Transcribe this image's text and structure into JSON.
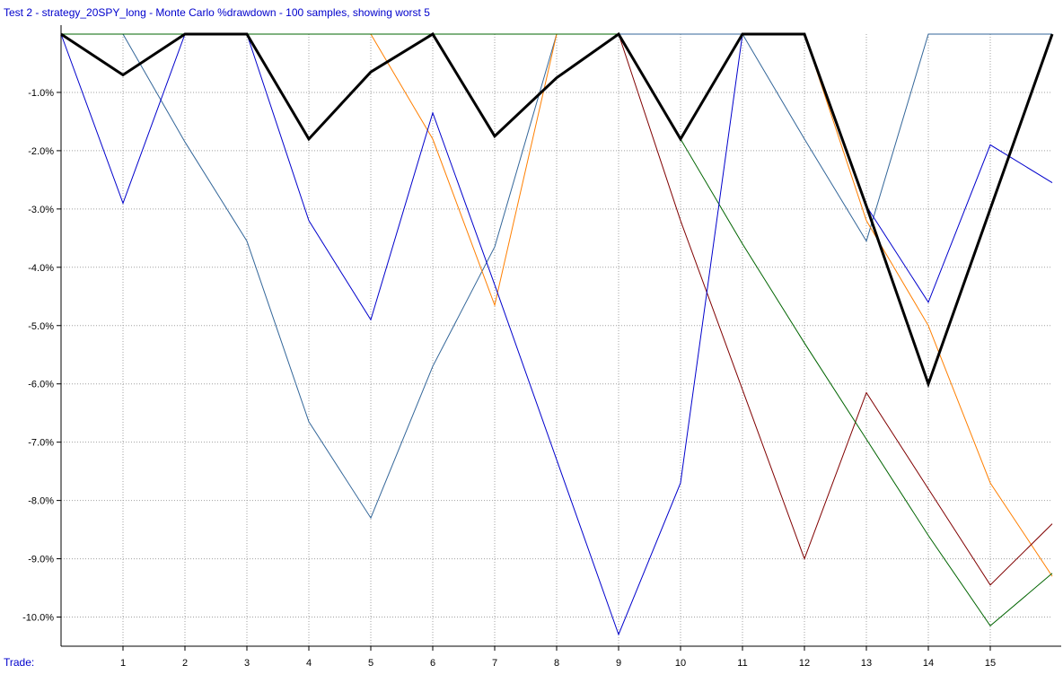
{
  "chart_data": {
    "type": "line",
    "title": "Test 2 - strategy_20SPY_long - Monte Carlo %drawdown - 100 samples, showing worst 5",
    "xlabel": "Trade:",
    "ylabel": "",
    "x": [
      0,
      1,
      2,
      3,
      4,
      5,
      6,
      7,
      8,
      9,
      10,
      11,
      12,
      13,
      14,
      15,
      16
    ],
    "x_tick_labels": [
      "1",
      "2",
      "3",
      "4",
      "5",
      "6",
      "7",
      "8",
      "9",
      "10",
      "11",
      "12",
      "13",
      "14",
      "15"
    ],
    "y_tick_values": [
      -1,
      -2,
      -3,
      -4,
      -5,
      -6,
      -7,
      -8,
      -9,
      -10
    ],
    "y_tick_labels": [
      "-1.0%",
      "-2.0%",
      "-3.0%",
      "-4.0%",
      "-5.0%",
      "-6.0%",
      "-7.0%",
      "-8.0%",
      "-9.0%",
      "-10.0%"
    ],
    "xlim": [
      0,
      16
    ],
    "ylim": [
      -10.5,
      0
    ],
    "grid": true,
    "series": [
      {
        "color": "#336699",
        "width": 1,
        "values": [
          0,
          0,
          -1.85,
          -3.55,
          -6.65,
          -8.3,
          -5.7,
          -3.65,
          0,
          0,
          0,
          0,
          -1.8,
          -3.55,
          0,
          0,
          0
        ]
      },
      {
        "color": "#ff7f00",
        "width": 1,
        "values": [
          0,
          0,
          0,
          0,
          0,
          0,
          -1.8,
          -4.65,
          0,
          0,
          -1.8,
          0,
          0,
          -3.2,
          -5.0,
          -7.7,
          -9.3
        ]
      },
      {
        "color": "#800000",
        "width": 1,
        "values": [
          0,
          0,
          0,
          0,
          0,
          0,
          0,
          0,
          0,
          0,
          -3.2,
          -6.1,
          -9.0,
          -6.15,
          -7.8,
          -9.45,
          -8.4
        ]
      },
      {
        "color": "#006400",
        "width": 1,
        "values": [
          0,
          0,
          0,
          0,
          0,
          0,
          0,
          0,
          0,
          0,
          -1.8,
          -3.6,
          -5.3,
          -6.95,
          -8.6,
          -10.15,
          -9.25
        ]
      },
      {
        "color": "#0000cc",
        "width": 1,
        "values": [
          0,
          -2.9,
          0,
          0,
          -3.2,
          -4.9,
          -1.35,
          -4.3,
          -7.3,
          -10.3,
          -7.7,
          0,
          0,
          -2.95,
          -4.6,
          -1.9,
          -2.55
        ]
      },
      {
        "color": "#000000",
        "width": 3,
        "values": [
          0,
          -0.7,
          0,
          0,
          -1.8,
          -0.65,
          0,
          -1.75,
          -0.75,
          0,
          -1.8,
          0,
          0,
          -2.95,
          -6.0,
          -3.0,
          0
        ]
      }
    ]
  }
}
